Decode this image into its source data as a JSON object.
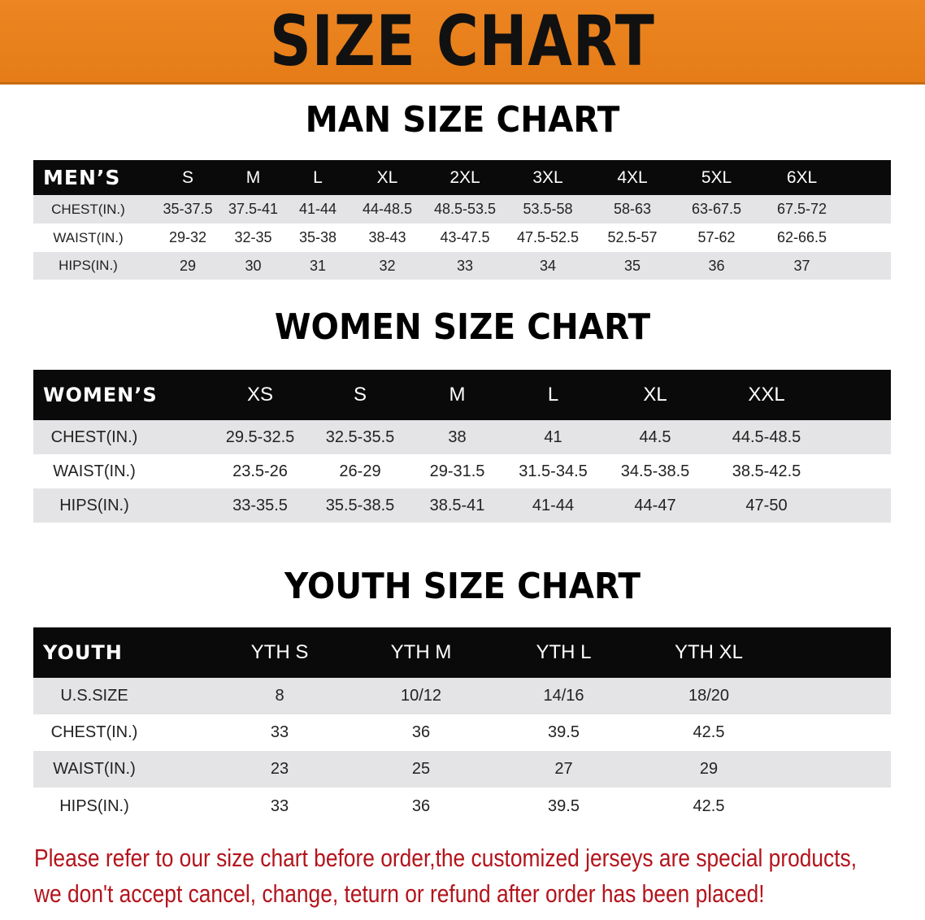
{
  "banner_title": "SIZE CHART",
  "colors": {
    "banner": "#e8801e",
    "header_row": "#0a0a0a",
    "shaded_row": "#e4e4e6",
    "note_text": "#b3141c"
  },
  "men": {
    "title": "MAN SIZE CHART",
    "header": "MEN’S",
    "sizes": [
      "S",
      "M",
      "L",
      "XL",
      "2XL",
      "3XL",
      "4XL",
      "5XL",
      "6XL"
    ],
    "rows": [
      {
        "label": "CHEST(IN.)",
        "values": [
          "35-37.5",
          "37.5-41",
          "41-44",
          "44-48.5",
          "48.5-53.5",
          "53.5-58",
          "58-63",
          "63-67.5",
          "67.5-72"
        ]
      },
      {
        "label": "WAIST(IN.)",
        "values": [
          "29-32",
          "32-35",
          "35-38",
          "38-43",
          "43-47.5",
          "47.5-52.5",
          "52.5-57",
          "57-62",
          "62-66.5"
        ]
      },
      {
        "label": "HIPS(IN.)",
        "values": [
          "29",
          "30",
          "31",
          "32",
          "33",
          "34",
          "35",
          "36",
          "37"
        ]
      }
    ]
  },
  "women": {
    "title": "WOMEN SIZE CHART",
    "header": "WOMEN’S",
    "sizes": [
      "XS",
      "S",
      "M",
      "L",
      "XL",
      "XXL"
    ],
    "rows": [
      {
        "label": "CHEST(IN.)",
        "values": [
          "29.5-32.5",
          "32.5-35.5",
          "38",
          "41",
          "44.5",
          "44.5-48.5"
        ]
      },
      {
        "label": "WAIST(IN.)",
        "values": [
          "23.5-26",
          "26-29",
          "29-31.5",
          "31.5-34.5",
          "34.5-38.5",
          "38.5-42.5"
        ]
      },
      {
        "label": "HIPS(IN.)",
        "values": [
          "33-35.5",
          "35.5-38.5",
          "38.5-41",
          "41-44",
          "44-47",
          "47-50"
        ]
      }
    ]
  },
  "youth": {
    "title": "YOUTH SIZE CHART",
    "header": "YOUTH",
    "sizes": [
      "YTH S",
      "YTH M",
      "YTH L",
      "YTH XL"
    ],
    "rows": [
      {
        "label": "U.S.SIZE",
        "values": [
          "8",
          "10/12",
          "14/16",
          "18/20"
        ]
      },
      {
        "label": "CHEST(IN.)",
        "values": [
          "33",
          "36",
          "39.5",
          "42.5"
        ]
      },
      {
        "label": "WAIST(IN.)",
        "values": [
          "23",
          "25",
          "27",
          "29"
        ]
      },
      {
        "label": "HIPS(IN.)",
        "values": [
          "33",
          "36",
          "39.5",
          "42.5"
        ]
      }
    ]
  },
  "note": {
    "line1": "Please refer to our size chart before order,the customized jerseys are special products,",
    "line2": "we don't accept cancel, change, teturn or refund after order has been placed!"
  }
}
